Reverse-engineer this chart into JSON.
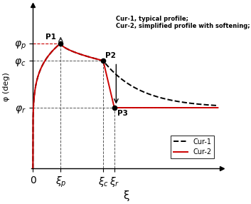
{
  "title": "",
  "xlabel": "ξ",
  "ylabel": "φ (deg)",
  "background_color": "#ffffff",
  "phi_p": 0.72,
  "phi_c": 0.62,
  "phi_r": 0.35,
  "xi_p": 0.15,
  "xi_c": 0.38,
  "xi_r": 0.44,
  "xi_max": 1.0,
  "annotation_text": "Cur-1, typical profile;\nCur-2, simplified profile with softening;",
  "curve1_color": "#000000",
  "curve2_color": "#cc0000",
  "dashed_color": "#555555",
  "point_color": "#000000"
}
